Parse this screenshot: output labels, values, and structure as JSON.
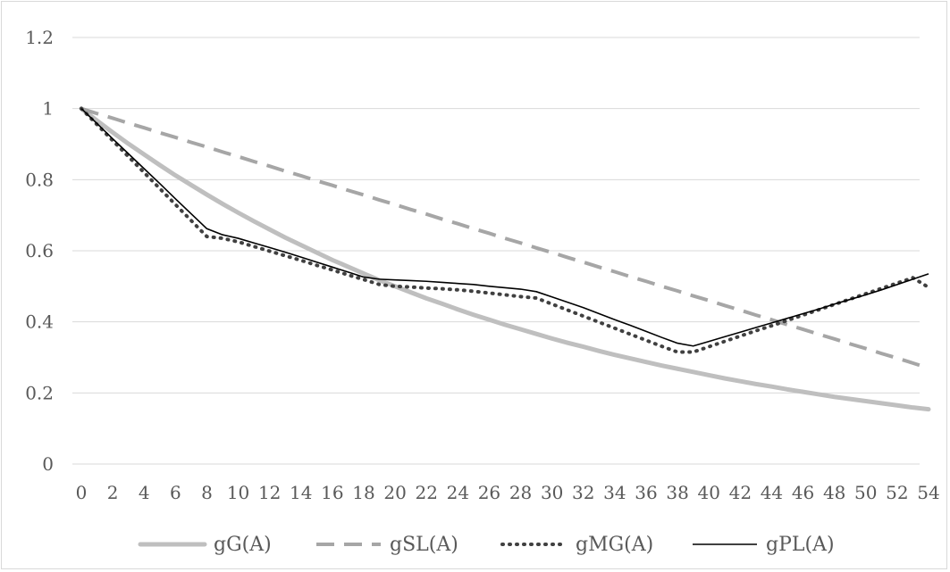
{
  "chart_data": {
    "type": "line",
    "title": "",
    "xlabel": "",
    "ylabel": "",
    "x": [
      0,
      1,
      2,
      3,
      4,
      5,
      6,
      7,
      8,
      9,
      10,
      11,
      12,
      13,
      14,
      15,
      16,
      17,
      18,
      19,
      20,
      21,
      22,
      23,
      24,
      25,
      26,
      27,
      28,
      29,
      30,
      31,
      32,
      33,
      34,
      35,
      36,
      37,
      38,
      39,
      40,
      41,
      42,
      43,
      44,
      45,
      46,
      47,
      48,
      49,
      50,
      51,
      52,
      53,
      54
    ],
    "x_ticks": [
      0,
      2,
      4,
      6,
      8,
      10,
      12,
      14,
      16,
      18,
      20,
      22,
      24,
      26,
      28,
      30,
      32,
      34,
      36,
      38,
      40,
      42,
      44,
      46,
      48,
      50,
      52,
      54
    ],
    "x_tick_labels": [
      "0",
      "2",
      "4",
      "6",
      "8",
      "10",
      "12",
      "14",
      "16",
      "18",
      "20",
      "22",
      "24",
      "26",
      "28",
      "30",
      "32",
      "34",
      "36",
      "38",
      "40",
      "42",
      "44",
      "46",
      "48",
      "50",
      "52",
      "54"
    ],
    "xlim": [
      0,
      54
    ],
    "y_ticks": [
      0,
      0.2,
      0.4,
      0.6,
      0.8,
      1,
      1.2
    ],
    "y_tick_labels": [
      "0",
      "0.2",
      "0.4",
      "0.6",
      "0.8",
      "1",
      "1.2"
    ],
    "ylim": [
      0,
      1.2
    ],
    "grid": true,
    "legend_position": "bottom",
    "series": [
      {
        "name": "gG(A)",
        "color": "#bfbfbf",
        "style": "solid-thick",
        "values": [
          1,
          0.966,
          0.933,
          0.901,
          0.871,
          0.841,
          0.812,
          0.785,
          0.758,
          0.732,
          0.707,
          0.683,
          0.66,
          0.637,
          0.616,
          0.595,
          0.574,
          0.555,
          0.536,
          0.517,
          0.5,
          0.483,
          0.466,
          0.451,
          0.435,
          0.42,
          0.406,
          0.392,
          0.379,
          0.366,
          0.353,
          0.341,
          0.33,
          0.318,
          0.307,
          0.297,
          0.287,
          0.277,
          0.268,
          0.259,
          0.25,
          0.241,
          0.233,
          0.225,
          0.218,
          0.21,
          0.203,
          0.196,
          0.189,
          0.183,
          0.177,
          0.171,
          0.165,
          0.159,
          0.154
        ]
      },
      {
        "name": "gSL(A)",
        "color": "#a6a6a6",
        "style": "dashed",
        "values": [
          1,
          0.986,
          0.973,
          0.959,
          0.946,
          0.932,
          0.919,
          0.905,
          0.892,
          0.878,
          0.865,
          0.851,
          0.838,
          0.824,
          0.811,
          0.797,
          0.784,
          0.77,
          0.757,
          0.743,
          0.73,
          0.716,
          0.703,
          0.689,
          0.676,
          0.662,
          0.649,
          0.635,
          0.622,
          0.608,
          0.595,
          0.581,
          0.568,
          0.554,
          0.541,
          0.527,
          0.514,
          0.5,
          0.487,
          0.473,
          0.46,
          0.446,
          0.433,
          0.419,
          0.406,
          0.392,
          0.379,
          0.365,
          0.352,
          0.338,
          0.325,
          0.311,
          0.298,
          0.284,
          0.27
        ]
      },
      {
        "name": "gMG(A)",
        "color": "#404040",
        "style": "dotted",
        "values": [
          1,
          0.955,
          0.91,
          0.865,
          0.82,
          0.775,
          0.73,
          0.685,
          0.64,
          0.635,
          0.625,
          0.612,
          0.599,
          0.586,
          0.573,
          0.559,
          0.546,
          0.532,
          0.519,
          0.505,
          0.5,
          0.498,
          0.495,
          0.493,
          0.49,
          0.486,
          0.481,
          0.476,
          0.471,
          0.467,
          0.45,
          0.433,
          0.416,
          0.399,
          0.382,
          0.365,
          0.348,
          0.331,
          0.315,
          0.315,
          0.33,
          0.345,
          0.36,
          0.375,
          0.389,
          0.404,
          0.419,
          0.434,
          0.449,
          0.464,
          0.479,
          0.494,
          0.509,
          0.524,
          0.497
        ]
      },
      {
        "name": "gPL(A)",
        "color": "#000000",
        "style": "solid-thin",
        "values": [
          1,
          0.958,
          0.915,
          0.873,
          0.831,
          0.789,
          0.746,
          0.704,
          0.662,
          0.645,
          0.635,
          0.622,
          0.609,
          0.596,
          0.582,
          0.568,
          0.554,
          0.54,
          0.526,
          0.52,
          0.518,
          0.516,
          0.514,
          0.511,
          0.508,
          0.505,
          0.5,
          0.496,
          0.492,
          0.485,
          0.47,
          0.455,
          0.44,
          0.423,
          0.406,
          0.39,
          0.373,
          0.356,
          0.34,
          0.332,
          0.345,
          0.358,
          0.371,
          0.384,
          0.397,
          0.41,
          0.423,
          0.436,
          0.45,
          0.463,
          0.476,
          0.49,
          0.505,
          0.52,
          0.535
        ]
      }
    ]
  }
}
